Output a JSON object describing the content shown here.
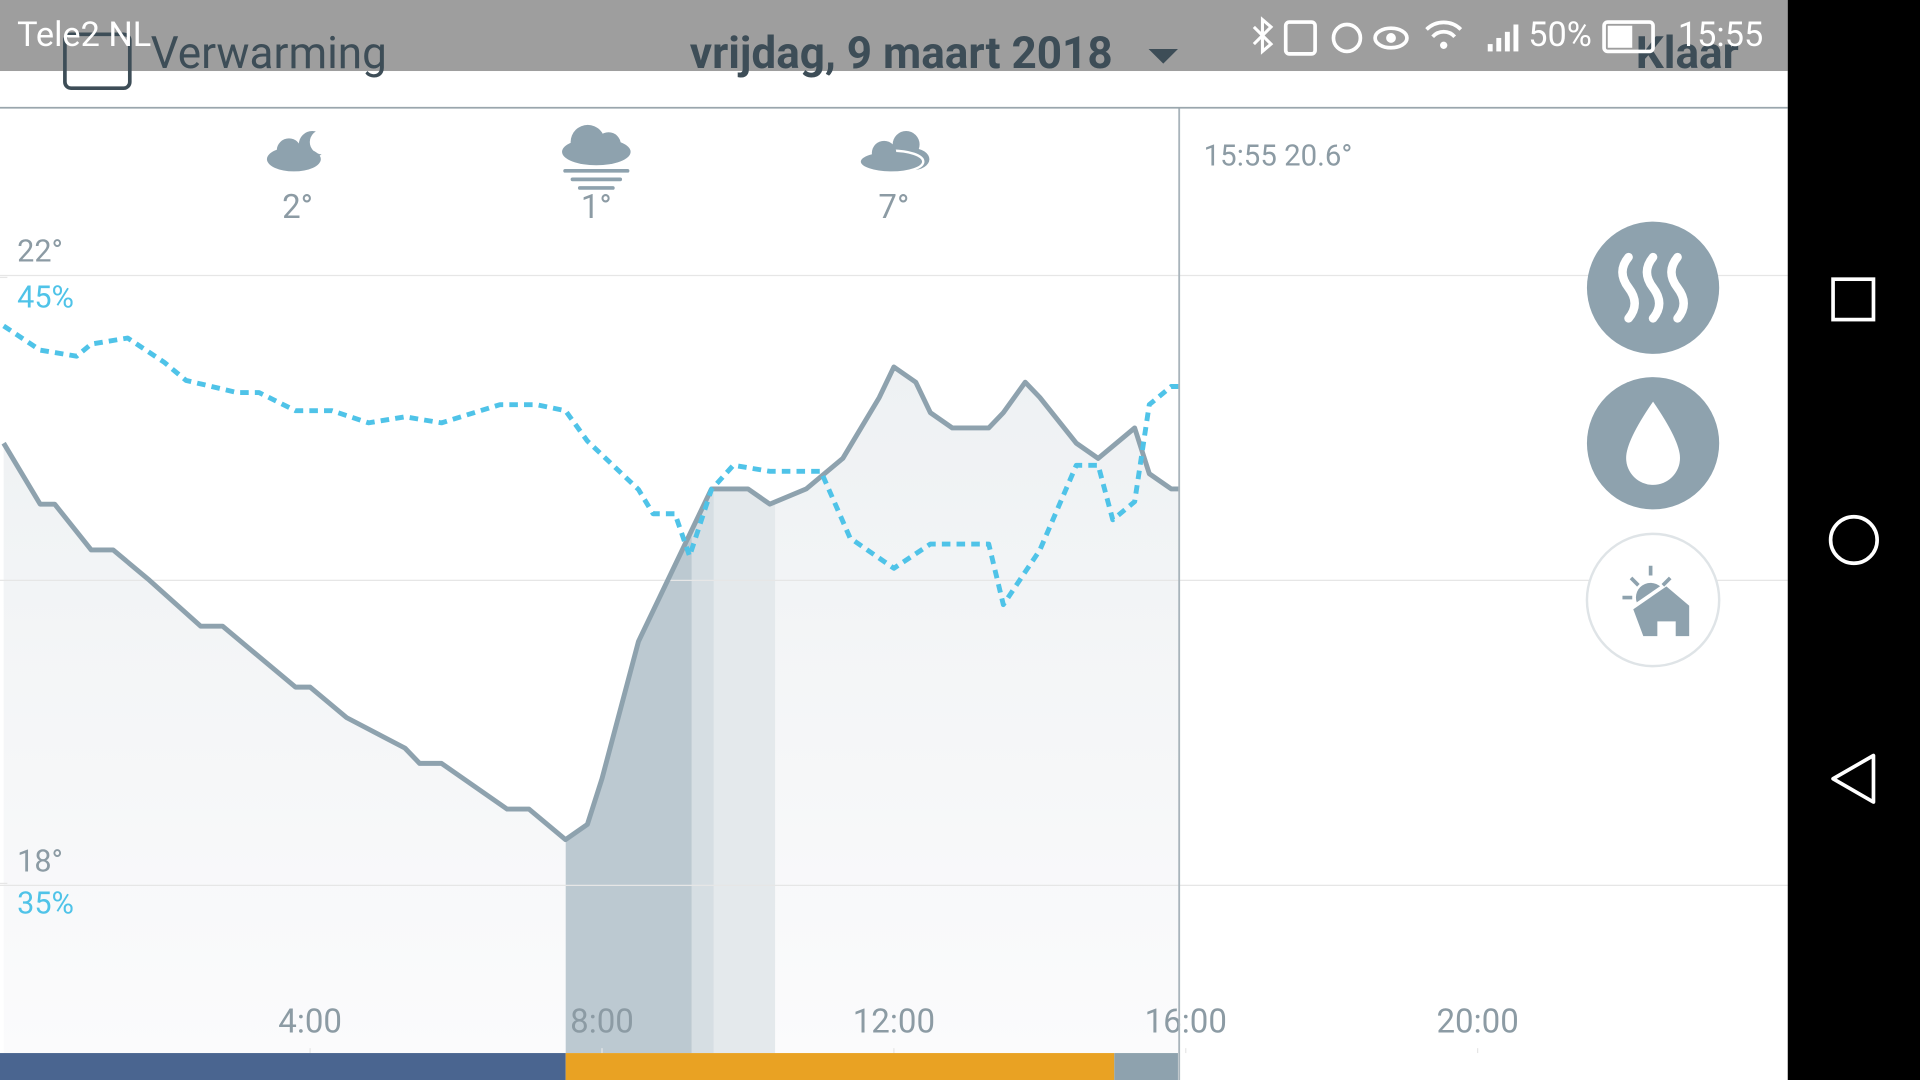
{
  "status_bar": {
    "carrier": "Tele2 NL",
    "battery": "50%",
    "time": "15:55"
  },
  "header": {
    "title": "Verwarming",
    "date": "vrijdag, 9 maart 2018",
    "done": "Klaar"
  },
  "weather": [
    {
      "temp": "2°"
    },
    {
      "temp": "1°"
    },
    {
      "temp": "7°"
    }
  ],
  "now_label": "15:55 20.6°",
  "chart_data": {
    "type": "line",
    "xlim": [
      -0.25,
      24.25
    ],
    "xticks": [
      {
        "value": 4,
        "label": "4:00"
      },
      {
        "value": 8,
        "label": "8:00"
      },
      {
        "value": 12,
        "label": "12:00"
      },
      {
        "value": 16,
        "label": "16:00"
      },
      {
        "value": 20,
        "label": "20:00"
      }
    ],
    "ylim": [
      16.9,
      23.1
    ],
    "yticks": [
      {
        "value": 22,
        "label": "22°"
      },
      {
        "value": 18,
        "label": "18°"
      }
    ],
    "y2lim": [
      32.2,
      47.8
    ],
    "y2ticks": [
      {
        "value": 45,
        "label": "45%"
      },
      {
        "value": 35,
        "label": "35%"
      }
    ],
    "grid": true,
    "series": [
      {
        "color": "#8ea2ae",
        "x": [
          -0.2,
          0.3,
          0.5,
          1.0,
          1.3,
          1.8,
          2.5,
          2.8,
          3.8,
          4.0,
          4.5,
          5.3,
          5.5,
          5.8,
          6.7,
          7.0,
          7.5,
          7.8,
          8.0,
          8.5,
          8.8,
          9.2,
          9.5,
          10.0,
          10.3,
          10.8,
          11.3,
          11.8,
          12.0,
          12.3,
          12.5,
          12.8,
          13.0,
          13.3,
          13.5,
          13.8,
          14.0,
          14.5,
          14.8,
          15.3,
          15.5,
          15.8,
          15.9
        ],
        "values": [
          20.9,
          20.5,
          20.5,
          20.2,
          20.2,
          20.0,
          19.7,
          19.7,
          19.3,
          19.3,
          19.1,
          18.9,
          18.8,
          18.8,
          18.5,
          18.5,
          18.3,
          18.4,
          18.7,
          19.6,
          19.9,
          20.3,
          20.6,
          20.6,
          20.5,
          20.6,
          20.8,
          21.2,
          21.4,
          21.3,
          21.1,
          21.0,
          21.0,
          21.0,
          21.1,
          21.3,
          21.2,
          20.9,
          20.8,
          21.0,
          20.7,
          20.6,
          20.6
        ]
      },
      {
        "color": "#4fc3e8",
        "axis": "y2",
        "dashed": true,
        "x": [
          -0.2,
          0.3,
          0.8,
          1.0,
          1.5,
          2.0,
          2.3,
          3.0,
          3.3,
          3.8,
          4.3,
          4.8,
          5.3,
          5.8,
          6.6,
          7.1,
          7.5,
          7.8,
          8.5,
          8.7,
          9.0,
          9.2,
          9.5,
          9.8,
          10.3,
          11.0,
          11.4,
          12.0,
          12.5,
          13.3,
          13.5,
          14.0,
          14.5,
          14.8,
          15.0,
          15.3,
          15.5,
          15.8,
          15.9
        ],
        "values": [
          44.2,
          43.8,
          43.7,
          43.9,
          44.0,
          43.6,
          43.3,
          43.1,
          43.1,
          42.8,
          42.8,
          42.6,
          42.7,
          42.6,
          42.9,
          42.9,
          42.8,
          42.3,
          41.5,
          41.1,
          41.1,
          40.4,
          41.5,
          41.9,
          41.8,
          41.8,
          40.7,
          40.2,
          40.6,
          40.6,
          39.6,
          40.5,
          41.9,
          41.9,
          41.0,
          41.3,
          42.9,
          43.2,
          43.2
        ]
      }
    ]
  }
}
